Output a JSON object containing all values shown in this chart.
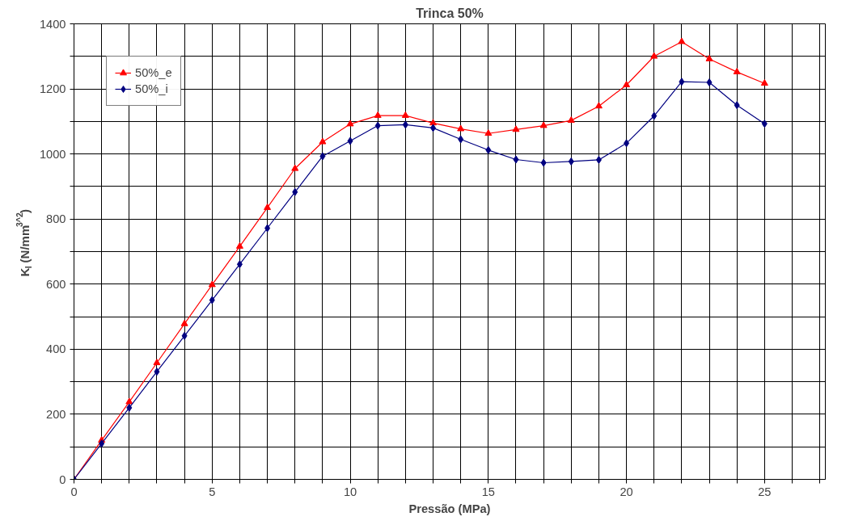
{
  "chart_data": {
    "type": "line",
    "title": "Trinca 50%",
    "xlabel": "Pressão (MPa)",
    "ylabel": "K$_{I}$ (N/mm$^{3^2}$)",
    "x": [
      0,
      1,
      2,
      3,
      4,
      5,
      6,
      7,
      8,
      9,
      10,
      11,
      12,
      13,
      14,
      15,
      16,
      17,
      18,
      19,
      20,
      21,
      22,
      23,
      24,
      25
    ],
    "series": [
      {
        "name": "50%_e",
        "color": "#ff0000",
        "marker": "triangle",
        "values": [
          0,
          120,
          238,
          358,
          478,
          598,
          716,
          835,
          955,
          1037,
          1092,
          1118,
          1118,
          1095,
          1077,
          1063,
          1075,
          1087,
          1103,
          1147,
          1212,
          1300,
          1345,
          1292,
          1252,
          1217
        ]
      },
      {
        "name": "50%_i",
        "color": "#000080",
        "marker": "diamond",
        "values": [
          0,
          110,
          220,
          331,
          441,
          551,
          661,
          772,
          883,
          993,
          1040,
          1087,
          1090,
          1080,
          1045,
          1012,
          983,
          973,
          977,
          982,
          1033,
          1117,
          1222,
          1220,
          1150,
          1093
        ]
      }
    ],
    "xlim": [
      0,
      27.2
    ],
    "ylim": [
      0,
      1400
    ],
    "xticks": [
      0,
      {
        "value": 1,
        "label": null
      },
      {
        "value": 2,
        "label": null
      },
      {
        "value": 3,
        "label": null
      },
      {
        "value": 4,
        "label": null
      },
      5,
      {
        "value": 6,
        "label": null
      },
      {
        "value": 7,
        "label": null
      },
      {
        "value": 8,
        "label": null
      },
      {
        "value": 9,
        "label": null
      },
      10,
      {
        "value": 11,
        "label": null
      },
      {
        "value": 12,
        "label": null
      },
      {
        "value": 13,
        "label": null
      },
      {
        "value": 14,
        "label": null
      },
      15,
      {
        "value": 16,
        "label": null
      },
      {
        "value": 17,
        "label": null
      },
      {
        "value": 18,
        "label": null
      },
      {
        "value": 19,
        "label": null
      },
      20,
      {
        "value": 21,
        "label": null
      },
      {
        "value": 22,
        "label": null
      },
      {
        "value": 23,
        "label": null
      },
      {
        "value": 24,
        "label": null
      },
      25,
      {
        "value": 26,
        "label": null
      },
      {
        "value": 27,
        "label": null
      }
    ],
    "yticks": [
      0,
      {
        "value": 100,
        "label": null
      },
      200,
      {
        "value": 300,
        "label": null
      },
      400,
      {
        "value": 500,
        "label": null
      },
      600,
      {
        "value": 700,
        "label": null
      },
      800,
      {
        "value": 900,
        "label": null
      },
      1000,
      {
        "value": 1100,
        "label": null
      },
      1200,
      {
        "value": 1300,
        "label": null
      },
      1400
    ],
    "grid": true,
    "legend": "top left",
    "line_style": "solid"
  }
}
